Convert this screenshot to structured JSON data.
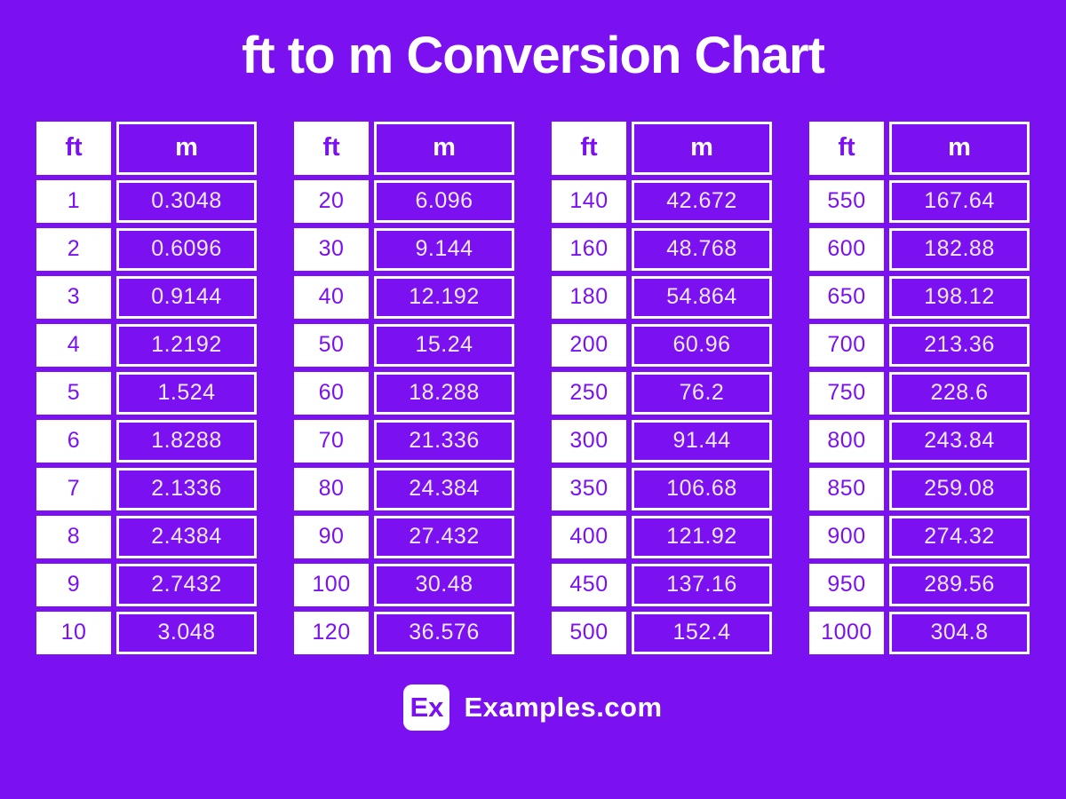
{
  "title": "ft to m Conversion Chart",
  "header": {
    "ft": "ft",
    "m": "m"
  },
  "colors": {
    "background_purple": "#7B10F0",
    "cell_purple": "#7B10F0",
    "white": "#FFFFFF",
    "value_text": "#F0E9FC"
  },
  "chart_data": {
    "type": "table",
    "title": "ft to m Conversion Chart",
    "columns": [
      "ft",
      "m"
    ],
    "tables": [
      {
        "rows": [
          [
            "1",
            "0.3048"
          ],
          [
            "2",
            "0.6096"
          ],
          [
            "3",
            "0.9144"
          ],
          [
            "4",
            "1.2192"
          ],
          [
            "5",
            "1.524"
          ],
          [
            "6",
            "1.8288"
          ],
          [
            "7",
            "2.1336"
          ],
          [
            "8",
            "2.4384"
          ],
          [
            "9",
            "2.7432"
          ],
          [
            "10",
            "3.048"
          ]
        ]
      },
      {
        "rows": [
          [
            "20",
            "6.096"
          ],
          [
            "30",
            "9.144"
          ],
          [
            "40",
            "12.192"
          ],
          [
            "50",
            "15.24"
          ],
          [
            "60",
            "18.288"
          ],
          [
            "70",
            "21.336"
          ],
          [
            "80",
            "24.384"
          ],
          [
            "90",
            "27.432"
          ],
          [
            "100",
            "30.48"
          ],
          [
            "120",
            "36.576"
          ]
        ]
      },
      {
        "rows": [
          [
            "140",
            "42.672"
          ],
          [
            "160",
            "48.768"
          ],
          [
            "180",
            "54.864"
          ],
          [
            "200",
            "60.96"
          ],
          [
            "250",
            "76.2"
          ],
          [
            "300",
            "91.44"
          ],
          [
            "350",
            "106.68"
          ],
          [
            "400",
            "121.92"
          ],
          [
            "450",
            "137.16"
          ],
          [
            "500",
            "152.4"
          ]
        ]
      },
      {
        "rows": [
          [
            "550",
            "167.64"
          ],
          [
            "600",
            "182.88"
          ],
          [
            "650",
            "198.12"
          ],
          [
            "700",
            "213.36"
          ],
          [
            "750",
            "228.6"
          ],
          [
            "800",
            "243.84"
          ],
          [
            "850",
            "259.08"
          ],
          [
            "900",
            "274.32"
          ],
          [
            "950",
            "289.56"
          ],
          [
            "1000",
            "304.8"
          ]
        ]
      }
    ]
  },
  "footer": {
    "logo_text": "Ex",
    "brand": "Examples.com"
  }
}
